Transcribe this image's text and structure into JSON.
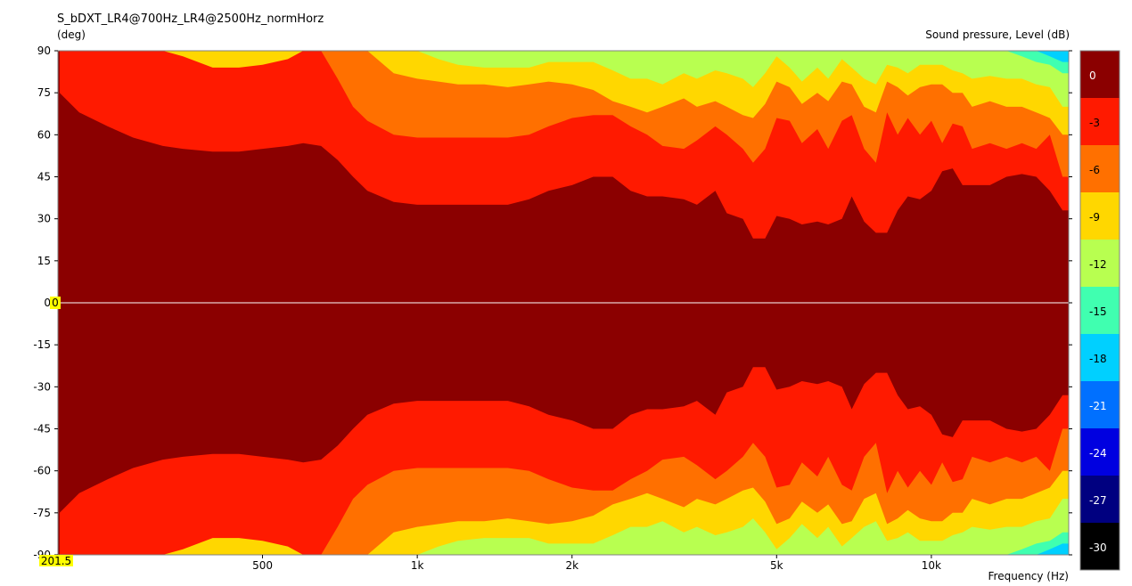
{
  "title": "S_bDXT_LR4@700Hz_LR4@2500Hz_normHorz",
  "y_unit": "(deg)",
  "colorbar_label": "Sound pressure, Level  (dB)",
  "x_label": "Frequency  (Hz)",
  "cursor": {
    "x_value": "201.5",
    "y_value": "0"
  },
  "chart_data": {
    "type": "heatmap",
    "title": "S_bDXT_LR4@700Hz_LR4@2500Hz_normHorz",
    "xlabel": "Frequency  (Hz)",
    "ylabel": "(deg)",
    "x_scale": "log",
    "xlim": [
      200,
      18500
    ],
    "ylim": [
      -90,
      90
    ],
    "x_ticks": [
      500,
      1000,
      2000,
      5000,
      10000
    ],
    "x_tick_labels": [
      "500",
      "1k",
      "2k",
      "5k",
      "10k"
    ],
    "y_ticks": [
      90,
      75,
      60,
      45,
      30,
      15,
      0,
      -15,
      -30,
      -45,
      -60,
      -75,
      -90
    ],
    "symmetric_about_zero": true,
    "colorbar": {
      "label": "Sound pressure, Level  (dB)",
      "levels": [
        0,
        -3,
        -6,
        -9,
        -12,
        -15,
        -18,
        -21,
        -24,
        -27,
        -30
      ],
      "colors": [
        "#8b0000",
        "#ff1a00",
        "#ff7000",
        "#ffd700",
        "#b8ff50",
        "#40ffb0",
        "#00d0ff",
        "#0070ff",
        "#0000e0",
        "#000080",
        "#000000"
      ]
    },
    "contours": {
      "x": [
        201.5,
        220,
        250,
        280,
        320,
        350,
        400,
        450,
        500,
        560,
        600,
        650,
        700,
        750,
        800,
        900,
        1000,
        1100,
        1200,
        1350,
        1500,
        1650,
        1800,
        2000,
        2200,
        2400,
        2600,
        2800,
        3000,
        3300,
        3500,
        3800,
        4000,
        4300,
        4500,
        4750,
        5000,
        5300,
        5600,
        6000,
        6300,
        6700,
        7000,
        7400,
        7800,
        8200,
        8600,
        9000,
        9500,
        10000,
        10500,
        11000,
        11500,
        12000,
        13000,
        14000,
        15000,
        16000,
        17000,
        18000
      ],
      "minus3": [
        75,
        68,
        63,
        59,
        56,
        55,
        54,
        54,
        55,
        56,
        57,
        56,
        51,
        45,
        40,
        36,
        35,
        35,
        35,
        35,
        35,
        37,
        40,
        42,
        45,
        45,
        40,
        38,
        38,
        37,
        35,
        40,
        32,
        30,
        23,
        23,
        31,
        30,
        28,
        29,
        28,
        30,
        38,
        29,
        25,
        25,
        33,
        38,
        37,
        40,
        47,
        48,
        42,
        42,
        42,
        45,
        46,
        45,
        40,
        33
      ],
      "minus6": [
        90,
        90,
        90,
        90,
        90,
        90,
        90,
        90,
        90,
        90,
        90,
        90,
        80,
        70,
        65,
        60,
        59,
        59,
        59,
        59,
        59,
        60,
        63,
        66,
        67,
        67,
        63,
        60,
        56,
        55,
        58,
        63,
        60,
        55,
        50,
        55,
        66,
        65,
        57,
        62,
        55,
        65,
        67,
        55,
        50,
        68,
        60,
        66,
        60,
        65,
        57,
        64,
        63,
        55,
        57,
        55,
        57,
        55,
        60,
        45
      ],
      "minus9": [
        90,
        90,
        90,
        90,
        90,
        88,
        84,
        84,
        85,
        87,
        90,
        90,
        90,
        90,
        90,
        82,
        80,
        79,
        78,
        78,
        77,
        78,
        79,
        78,
        76,
        72,
        70,
        68,
        70,
        73,
        70,
        72,
        70,
        67,
        66,
        71,
        79,
        77,
        71,
        75,
        72,
        79,
        78,
        70,
        68,
        79,
        77,
        74,
        77,
        78,
        78,
        75,
        75,
        70,
        72,
        70,
        70,
        68,
        66,
        60
      ],
      "minus12": [
        90,
        90,
        90,
        90,
        90,
        90,
        90,
        90,
        90,
        90,
        90,
        90,
        90,
        90,
        90,
        90,
        90,
        87,
        85,
        84,
        84,
        84,
        86,
        86,
        86,
        83,
        80,
        80,
        78,
        82,
        80,
        83,
        82,
        80,
        77,
        82,
        88,
        84,
        79,
        84,
        80,
        87,
        84,
        80,
        78,
        85,
        84,
        82,
        85,
        85,
        85,
        83,
        82,
        80,
        81,
        80,
        80,
        78,
        77,
        70
      ],
      "minus15": [
        90,
        90,
        90,
        90,
        90,
        90,
        90,
        90,
        90,
        90,
        90,
        90,
        90,
        90,
        90,
        90,
        90,
        90,
        90,
        90,
        90,
        90,
        90,
        90,
        90,
        90,
        90,
        90,
        90,
        90,
        90,
        90,
        90,
        90,
        90,
        90,
        90,
        90,
        90,
        90,
        90,
        90,
        90,
        90,
        90,
        90,
        90,
        90,
        90,
        90,
        90,
        90,
        90,
        90,
        90,
        90,
        88,
        86,
        85,
        82
      ],
      "minus18": [
        90,
        90,
        90,
        90,
        90,
        90,
        90,
        90,
        90,
        90,
        90,
        90,
        90,
        90,
        90,
        90,
        90,
        90,
        90,
        90,
        90,
        90,
        90,
        90,
        90,
        90,
        90,
        90,
        90,
        90,
        90,
        90,
        90,
        90,
        90,
        90,
        90,
        90,
        90,
        90,
        90,
        90,
        90,
        90,
        90,
        90,
        90,
        90,
        90,
        90,
        90,
        90,
        90,
        90,
        90,
        90,
        90,
        90,
        88,
        86
      ]
    }
  }
}
